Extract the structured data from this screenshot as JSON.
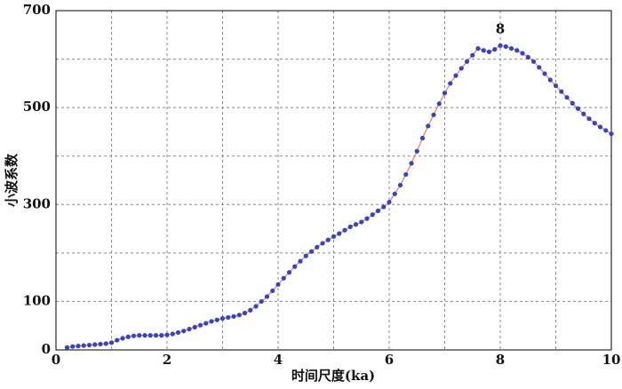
{
  "chart_data": {
    "type": "line",
    "xlabel": "时间尺度(ka)",
    "ylabel": "小波系数",
    "annotation": "8",
    "x": [
      0.2,
      0.3,
      0.4,
      0.5,
      0.6,
      0.7,
      0.8,
      0.9,
      1.0,
      1.1,
      1.2,
      1.3,
      1.4,
      1.5,
      1.6,
      1.7,
      1.8,
      1.9,
      2.0,
      2.1,
      2.2,
      2.3,
      2.4,
      2.5,
      2.6,
      2.7,
      2.8,
      2.9,
      3.0,
      3.1,
      3.2,
      3.3,
      3.4,
      3.5,
      3.6,
      3.7,
      3.8,
      3.9,
      4.0,
      4.1,
      4.2,
      4.3,
      4.4,
      4.5,
      4.6,
      4.7,
      4.8,
      4.9,
      5.0,
      5.1,
      5.2,
      5.3,
      5.4,
      5.5,
      5.6,
      5.7,
      5.8,
      5.9,
      6.0,
      6.1,
      6.2,
      6.3,
      6.4,
      6.5,
      6.6,
      6.7,
      6.8,
      6.9,
      7.0,
      7.1,
      7.2,
      7.3,
      7.4,
      7.5,
      7.6,
      7.7,
      7.8,
      7.9,
      8.0,
      8.1,
      8.2,
      8.3,
      8.4,
      8.5,
      8.6,
      8.7,
      8.8,
      8.9,
      9.0,
      9.1,
      9.2,
      9.3,
      9.4,
      9.5,
      9.6,
      9.7,
      9.8,
      9.9,
      10.0
    ],
    "series": [
      {
        "line_color": "#f08070",
        "marker_color": "#3344cc",
        "values": [
          5,
          7,
          8,
          9,
          10,
          11,
          12,
          13,
          15,
          20,
          24,
          27,
          29,
          30,
          30,
          30,
          30,
          30,
          31,
          33,
          36,
          39,
          43,
          47,
          51,
          55,
          59,
          62,
          65,
          67,
          69,
          72,
          76,
          82,
          90,
          100,
          110,
          122,
          135,
          148,
          160,
          172,
          183,
          194,
          203,
          212,
          220,
          227,
          234,
          240,
          247,
          254,
          259,
          264,
          271,
          279,
          287,
          295,
          305,
          322,
          340,
          362,
          385,
          410,
          437,
          462,
          485,
          508,
          530,
          550,
          566,
          581,
          595,
          608,
          622,
          618,
          615,
          620,
          628,
          626,
          622,
          618,
          612,
          604,
          595,
          583,
          570,
          557,
          545,
          533,
          521,
          509,
          498,
          487,
          477,
          468,
          460,
          453,
          446
        ]
      }
    ],
    "xlim": [
      0,
      10
    ],
    "xticks": [
      0,
      2,
      4,
      6,
      8,
      10
    ],
    "x_minor_ticks": [
      1,
      3,
      5,
      7,
      9
    ],
    "ylim": [
      0,
      700
    ],
    "yticks": [
      0,
      100,
      300,
      500,
      700
    ],
    "y_minor_ticks": [
      200,
      400,
      600
    ],
    "grid": true
  }
}
